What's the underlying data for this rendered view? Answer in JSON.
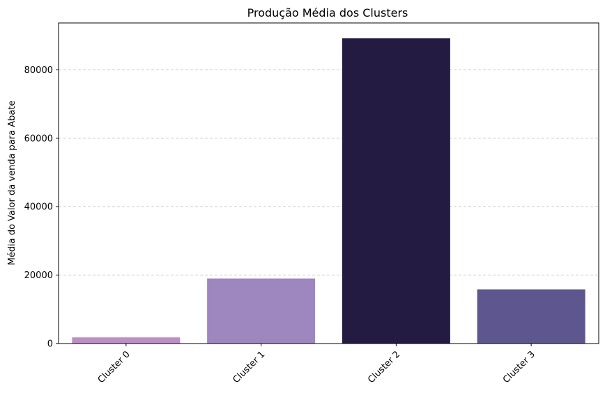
{
  "chart_data": {
    "type": "bar",
    "title": "Produção Média dos Clusters",
    "xlabel": "",
    "ylabel": "Média do Valor da venda para Abate",
    "categories": [
      "Cluster 0",
      "Cluster 1",
      "Cluster 2",
      "Cluster 3"
    ],
    "values": [
      1800,
      19000,
      89200,
      15800
    ],
    "colors": [
      "#bc8fc5",
      "#9e86bf",
      "#231b42",
      "#5e568f"
    ],
    "ylim": [
      0,
      93700
    ],
    "yticks": [
      0,
      20000,
      40000,
      60000,
      80000
    ],
    "ytick_labels": [
      "0",
      "20000",
      "40000",
      "60000",
      "80000"
    ],
    "grid": "y-dashed",
    "legend": "none",
    "grid_color": "#c8c8c8"
  }
}
